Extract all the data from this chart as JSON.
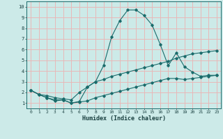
{
  "xlabel": "Humidex (Indice chaleur)",
  "xlim": [
    -0.5,
    23.5
  ],
  "ylim": [
    0.5,
    10.5
  ],
  "xticks": [
    0,
    1,
    2,
    3,
    4,
    5,
    6,
    7,
    8,
    9,
    10,
    11,
    12,
    13,
    14,
    15,
    16,
    17,
    18,
    19,
    20,
    21,
    22,
    23
  ],
  "yticks": [
    1,
    2,
    3,
    4,
    5,
    6,
    7,
    8,
    9,
    10
  ],
  "bg_color": "#cceae8",
  "line_color": "#1a6b6b",
  "grid_color": "#e8b8b8",
  "line1_x": [
    0,
    1,
    2,
    3,
    4,
    5,
    6,
    7,
    8,
    9,
    10,
    11,
    12,
    13,
    14,
    15,
    16,
    17,
    18,
    19,
    20,
    21,
    22,
    23
  ],
  "line1_y": [
    2.2,
    1.8,
    1.5,
    1.2,
    1.3,
    1.0,
    1.15,
    2.5,
    3.0,
    4.5,
    7.2,
    8.7,
    9.7,
    9.7,
    9.2,
    8.3,
    6.5,
    4.5,
    5.7,
    4.4,
    3.9,
    3.5,
    3.6,
    3.6
  ],
  "line2_x": [
    0,
    1,
    2,
    3,
    4,
    5,
    6,
    7,
    8,
    9,
    10,
    11,
    12,
    13,
    14,
    15,
    16,
    17,
    18,
    19,
    20,
    21,
    22,
    23
  ],
  "line2_y": [
    2.2,
    1.8,
    1.7,
    1.5,
    1.4,
    1.3,
    2.0,
    2.5,
    3.0,
    3.2,
    3.5,
    3.7,
    3.9,
    4.1,
    4.3,
    4.5,
    4.7,
    4.9,
    5.2,
    5.4,
    5.6,
    5.7,
    5.8,
    5.9
  ],
  "line3_x": [
    0,
    1,
    2,
    3,
    4,
    5,
    6,
    7,
    8,
    9,
    10,
    11,
    12,
    13,
    14,
    15,
    16,
    17,
    18,
    19,
    20,
    21,
    22,
    23
  ],
  "line3_y": [
    2.2,
    1.8,
    1.5,
    1.3,
    1.3,
    1.0,
    1.1,
    1.2,
    1.5,
    1.7,
    1.9,
    2.1,
    2.3,
    2.5,
    2.7,
    2.9,
    3.1,
    3.3,
    3.3,
    3.2,
    3.3,
    3.4,
    3.5,
    3.6
  ]
}
